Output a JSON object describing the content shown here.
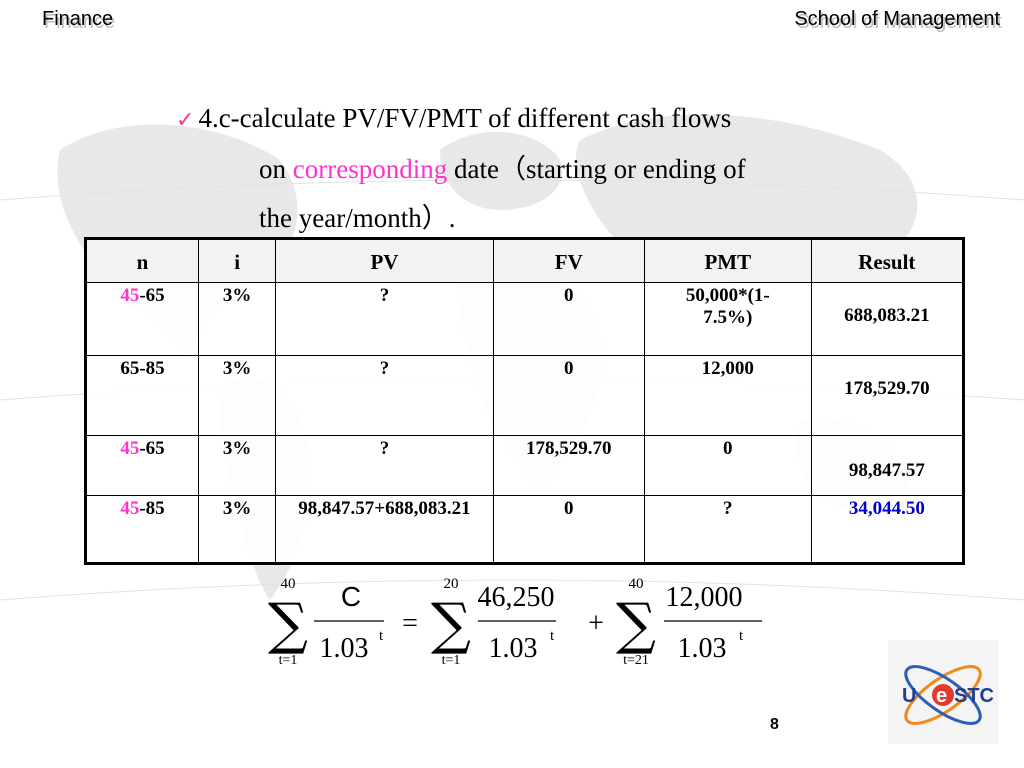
{
  "header": {
    "left": "Finance",
    "right": "School of Management"
  },
  "bullet": {
    "line1": "4.c-calculate PV/FV/PMT of different cash flows",
    "line2_prefix": "on ",
    "line2_highlight": "corresponding",
    "line2_suffix": " date（starting or ending of",
    "line3": "the year/month）."
  },
  "table": {
    "headers": [
      "n",
      "i",
      "PV",
      "FV",
      "PMT",
      "Result"
    ],
    "rows": [
      {
        "n_start": "45",
        "n_end": "-65",
        "i": "3%",
        "pv": "?",
        "fv": "0",
        "pmt": "50,000*(1-7.5%)",
        "result": "688,083.21"
      },
      {
        "n": "65-85",
        "i": "3%",
        "pv": "?",
        "fv": "0",
        "pmt": "12,000",
        "result": "178,529.70"
      },
      {
        "n_start": "45",
        "n_end": "-65",
        "i": "3%",
        "pv": "?",
        "fv": "178,529.70",
        "pmt": "0",
        "result": "98,847.57"
      },
      {
        "n_start": "45",
        "n_end": "-85",
        "i": "3%",
        "pv": "98,847.57+688,083.21",
        "fv": "0",
        "pmt": "?",
        "result": "34,044.50"
      }
    ]
  },
  "formula": {
    "sum1_upper": "40",
    "sum1_lower": "t=1",
    "term1_num": "C",
    "term1_den": "1.03",
    "exp1": "t",
    "equals": "=",
    "sum2_upper": "20",
    "sum2_lower": "t=1",
    "term2_num": "46,250",
    "term2_den": "1.03",
    "exp2": "t",
    "plus": "+",
    "sum3_upper": "40",
    "sum3_lower": "t=21",
    "term3_num": "12,000",
    "term3_den": "1.03",
    "exp3": "t"
  },
  "page_number": "8",
  "logo_text": {
    "u": "U",
    "e": "e",
    "rest": "STC"
  },
  "colors": {
    "highlight_pink": "#ff33cc",
    "result_blue": "#0000cc",
    "check": "#ff3399"
  }
}
